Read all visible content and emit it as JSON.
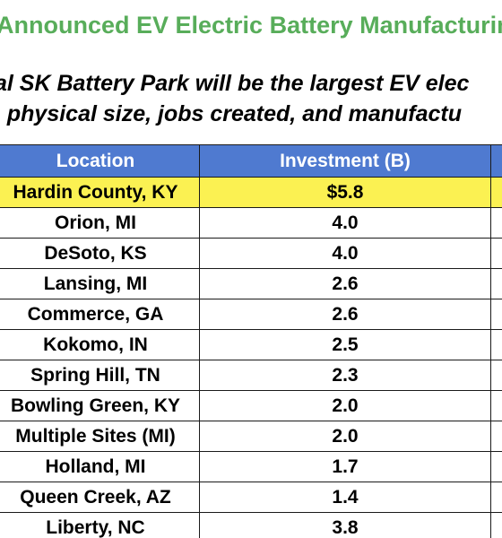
{
  "title": "Announced EV Electric Battery Manufacturing",
  "subtitle": {
    "line1": "al SK Battery Park will be the largest EV elec",
    "line2": ", physical size, jobs created, and manufactu"
  },
  "table": {
    "headers": [
      "Location",
      "Investment (B)"
    ],
    "highlight_color": "#fbf152",
    "header_color": "#4f7ad0",
    "rows": [
      {
        "location": "Hardin County, KY",
        "investment": "$5.8",
        "highlight": true
      },
      {
        "location": "Orion, MI",
        "investment": "4.0"
      },
      {
        "location": "DeSoto, KS",
        "investment": "4.0"
      },
      {
        "location": "Lansing, MI",
        "investment": "2.6"
      },
      {
        "location": "Commerce, GA",
        "investment": "2.6"
      },
      {
        "location": "Kokomo, IN",
        "investment": "2.5"
      },
      {
        "location": "Spring Hill, TN",
        "investment": "2.3"
      },
      {
        "location": "Bowling Green, KY",
        "investment": "2.0"
      },
      {
        "location": "Multiple Sites (MI)",
        "investment": "2.0"
      },
      {
        "location": "Holland, MI",
        "investment": "1.7"
      },
      {
        "location": "Queen Creek, AZ",
        "investment": "1.4"
      },
      {
        "location": "Liberty, NC",
        "investment": "3.8"
      }
    ]
  }
}
